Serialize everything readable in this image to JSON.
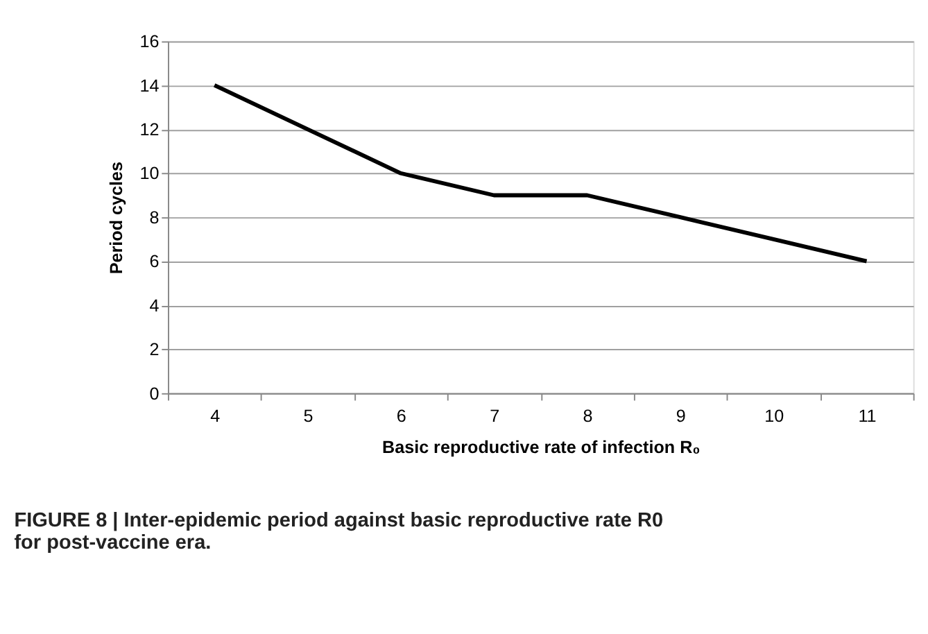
{
  "chart_data": {
    "type": "line",
    "xlabel": "Basic reproductive rate of infection R₀",
    "ylabel": "Period cycles",
    "categories": [
      "4",
      "5",
      "6",
      "7",
      "8",
      "9",
      "10",
      "11"
    ],
    "series": [
      {
        "color": "#000000",
        "values": [
          14,
          12,
          10,
          9,
          9,
          8,
          7,
          6
        ]
      }
    ],
    "ylim": [
      0,
      16
    ],
    "yticks": [
      0,
      2,
      4,
      6,
      8,
      10,
      12,
      14,
      16
    ],
    "grid": "y",
    "marker": "none",
    "line_style": "solid",
    "annotations": [
      "FIGURE 8 | Inter-epidemic period against basic reproductive rate R0 for post-vaccine era."
    ]
  }
}
